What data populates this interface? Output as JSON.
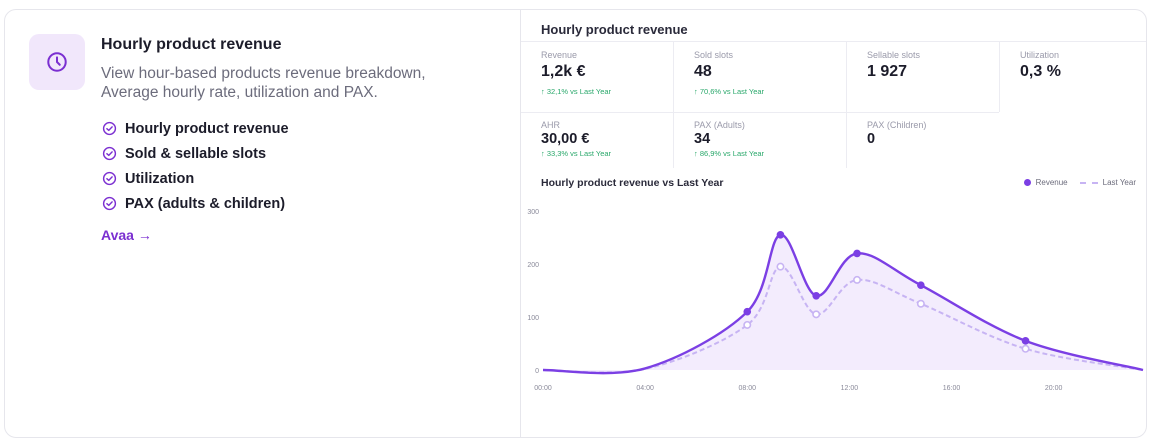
{
  "card": {
    "title": "Hourly product revenue",
    "description": "View hour-based products revenue breakdown, Average hourly rate, utilization and PAX.",
    "features": [
      "Hourly product revenue",
      "Sold & sellable slots",
      "Utilization",
      "PAX (adults & children)"
    ],
    "link_label": "Avaa →",
    "icon": "clock-icon"
  },
  "panel": {
    "title": "Hourly product revenue",
    "kpis": [
      {
        "label": "Revenue",
        "value": "1,2k €",
        "change": "↑ 32,1% vs Last Year"
      },
      {
        "label": "Sold slots",
        "value": "48",
        "change": "↑ 70,6% vs Last Year"
      },
      {
        "label": "Sellable slots",
        "value": "1 927",
        "change": ""
      },
      {
        "label": "Utilization",
        "value": "0,3 %",
        "change": ""
      },
      {
        "label": "AHR",
        "value": "30,00 €",
        "change": "↑ 33,3% vs Last Year"
      },
      {
        "label": "PAX (Adults)",
        "value": "34",
        "change": "↑ 86,9% vs Last Year"
      },
      {
        "label": "PAX (Children)",
        "value": "0",
        "change": ""
      }
    ],
    "chart_title": "Hourly product revenue vs Last Year",
    "legend": {
      "revenue": "Revenue",
      "last_year": "Last Year"
    }
  },
  "colors": {
    "accent": "#7b3fe4",
    "last_year": "#c7b4f3",
    "positive": "#2aa86b"
  },
  "chart_data": {
    "type": "area",
    "title": "Hourly product revenue vs Last Year",
    "xlabel": "",
    "ylabel": "",
    "ylim": [
      0,
      300
    ],
    "y_ticks": [
      0,
      100,
      200,
      300
    ],
    "x_ticks": [
      "00:00",
      "04:00",
      "08:00",
      "12:00",
      "16:00",
      "20:00"
    ],
    "xlim": [
      0,
      23.5
    ],
    "series": [
      {
        "name": "Revenue",
        "x": [
          0,
          4,
          8,
          9.3,
          10.7,
          12.3,
          14.8,
          18.9,
          23.5
        ],
        "y": [
          0,
          3,
          110,
          255,
          140,
          220,
          160,
          55,
          0
        ],
        "markers": [
          8,
          9.3,
          10.7,
          12.3,
          14.8,
          18.9
        ]
      },
      {
        "name": "Last Year",
        "x": [
          0,
          4,
          8,
          9.3,
          10.7,
          12.3,
          14.8,
          18.9,
          23.5
        ],
        "y": [
          0,
          2,
          85,
          195,
          105,
          170,
          125,
          40,
          0
        ],
        "markers": [
          8,
          9.3,
          10.7,
          12.3,
          14.8,
          18.9
        ]
      }
    ],
    "grid": false,
    "legend_position": "top-right"
  }
}
